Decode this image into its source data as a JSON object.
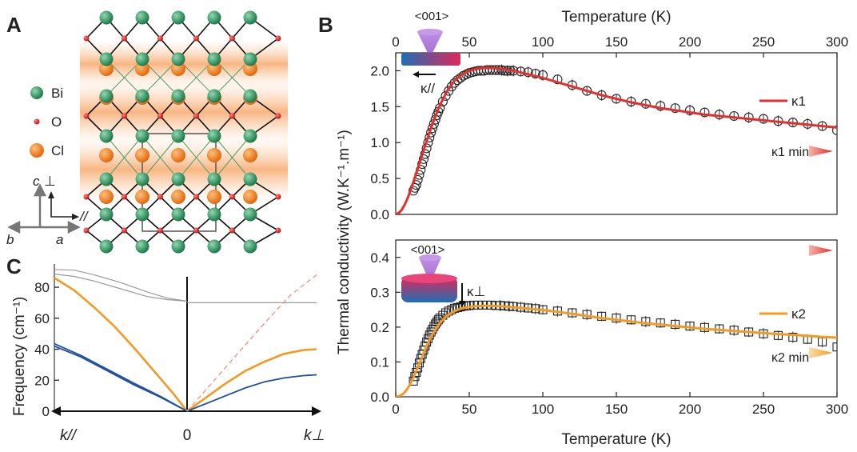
{
  "panels": {
    "a": "A",
    "b": "B",
    "c": "C"
  },
  "structure_legend": [
    {
      "label": "Bi",
      "color": "#2e8b57"
    },
    {
      "label": "O",
      "color": "#d42020"
    },
    {
      "label": "Cl",
      "color": "#e8782a"
    }
  ],
  "axes_labels": {
    "c": "c",
    "perp": "⊥",
    "b": "b",
    "a": "a",
    "par": "//"
  },
  "colors": {
    "kappa1": "#e03030",
    "kappa2": "#f39a22",
    "branch_blue": "#1e4f9c",
    "branch_orange": "#f39a22",
    "branch_gray": "#9a9a9a",
    "dashed": "#f08a70"
  },
  "chart_data": [
    {
      "id": "B-top",
      "type": "scatter",
      "xlabel": "Temperature (K)",
      "ylabel": "Thermal conductivity (W.K⁻¹.m⁻¹)",
      "xlim": [
        0,
        300
      ],
      "ylim": [
        0,
        2.25
      ],
      "x_ticks": [
        0,
        50,
        100,
        150,
        200,
        250,
        300
      ],
      "y_ticks": [
        "0.0",
        "0.5",
        "1.0",
        "1.5",
        "2.0"
      ],
      "inset_label": "<001>",
      "inset_kappa": "κ//",
      "legend": "κ1",
      "min_label": "κ1 min",
      "series": [
        {
          "name": "κ1",
          "kind": "line",
          "x": [
            0,
            2,
            4,
            6,
            8,
            10,
            12,
            15,
            18,
            21,
            25,
            30,
            35,
            40,
            45,
            50,
            55,
            60,
            65,
            70,
            75,
            80,
            90,
            100,
            110,
            120,
            130,
            140,
            150,
            160,
            170,
            180,
            190,
            200,
            210,
            220,
            230,
            240,
            250,
            260,
            270,
            280,
            290,
            300
          ],
          "y": [
            0,
            0.02,
            0.06,
            0.13,
            0.22,
            0.33,
            0.45,
            0.64,
            0.83,
            1.02,
            1.26,
            1.52,
            1.72,
            1.86,
            1.95,
            2.0,
            2.03,
            2.04,
            2.04,
            2.03,
            2.02,
            2.0,
            1.95,
            1.9,
            1.84,
            1.78,
            1.72,
            1.66,
            1.61,
            1.56,
            1.52,
            1.48,
            1.45,
            1.42,
            1.39,
            1.37,
            1.35,
            1.33,
            1.31,
            1.29,
            1.27,
            1.25,
            1.23,
            1.21
          ]
        },
        {
          "name": "",
          "kind": "markers",
          "x": [
            12,
            13,
            14,
            15,
            16,
            17,
            18,
            19,
            20,
            21,
            22,
            23,
            24,
            25,
            26,
            27,
            28,
            29,
            30,
            32,
            34,
            36,
            38,
            40,
            42,
            44,
            46,
            48,
            50,
            52,
            54,
            56,
            58,
            60,
            62,
            64,
            66,
            68,
            70,
            72,
            74,
            76,
            78,
            80,
            85,
            90,
            95,
            100,
            110,
            120,
            130,
            140,
            150,
            160,
            170,
            180,
            190,
            200,
            210,
            220,
            230,
            240,
            250,
            260,
            270,
            280,
            290,
            300
          ],
          "y": [
            0.33,
            0.37,
            0.41,
            0.48,
            0.55,
            0.62,
            0.7,
            0.77,
            0.84,
            0.92,
            1.0,
            1.07,
            1.14,
            1.2,
            1.26,
            1.32,
            1.38,
            1.43,
            1.48,
            1.57,
            1.65,
            1.72,
            1.78,
            1.83,
            1.87,
            1.9,
            1.93,
            1.95,
            1.97,
            1.98,
            1.99,
            2.0,
            2.0,
            2.0,
            2.01,
            2.01,
            2.01,
            2.01,
            2.01,
            2.01,
            2.0,
            2.0,
            2.0,
            2.0,
            1.99,
            1.98,
            1.96,
            1.94,
            1.88,
            1.8,
            1.72,
            1.66,
            1.61,
            1.57,
            1.54,
            1.51,
            1.48,
            1.45,
            1.42,
            1.39,
            1.37,
            1.35,
            1.33,
            1.3,
            1.28,
            1.26,
            1.23,
            1.17
          ]
        }
      ]
    },
    {
      "id": "B-bottom",
      "type": "scatter",
      "xlabel": "Temperature (K)",
      "xlim": [
        0,
        300
      ],
      "ylim": [
        0,
        0.45
      ],
      "x_ticks": [
        0,
        50,
        100,
        150,
        200,
        250,
        300
      ],
      "y_ticks": [
        "0.0",
        "0.1",
        "0.2",
        "0.3",
        "0.4"
      ],
      "inset_label": "<001>",
      "inset_kappa": "κ⊥",
      "legend": "κ2",
      "min_label": "κ2 min",
      "series": [
        {
          "name": "κ2",
          "kind": "line",
          "x": [
            0,
            3,
            6,
            9,
            12,
            15,
            18,
            21,
            25,
            30,
            35,
            40,
            45,
            50,
            55,
            60,
            65,
            70,
            75,
            80,
            90,
            100,
            110,
            120,
            130,
            140,
            150,
            160,
            170,
            180,
            190,
            200,
            210,
            220,
            230,
            240,
            250,
            260,
            270,
            280,
            290,
            300
          ],
          "y": [
            0,
            0.003,
            0.012,
            0.03,
            0.055,
            0.085,
            0.115,
            0.145,
            0.18,
            0.212,
            0.233,
            0.246,
            0.254,
            0.258,
            0.26,
            0.261,
            0.261,
            0.26,
            0.259,
            0.257,
            0.253,
            0.249,
            0.244,
            0.238,
            0.232,
            0.226,
            0.221,
            0.216,
            0.211,
            0.207,
            0.203,
            0.199,
            0.195,
            0.192,
            0.189,
            0.186,
            0.183,
            0.18,
            0.178,
            0.175,
            0.172,
            0.17
          ]
        },
        {
          "name": "",
          "kind": "markers",
          "x": [
            12,
            13,
            14,
            15,
            16,
            17,
            18,
            19,
            20,
            21,
            22,
            23,
            24,
            25,
            26,
            27,
            28,
            29,
            30,
            32,
            34,
            36,
            38,
            40,
            42,
            44,
            46,
            48,
            50,
            53,
            56,
            59,
            62,
            65,
            68,
            71,
            74,
            77,
            80,
            85,
            90,
            95,
            100,
            110,
            120,
            130,
            140,
            150,
            160,
            170,
            180,
            190,
            200,
            210,
            220,
            230,
            240,
            250,
            260,
            270,
            280,
            290,
            300
          ],
          "y": [
            0.045,
            0.058,
            0.07,
            0.083,
            0.097,
            0.11,
            0.122,
            0.134,
            0.146,
            0.157,
            0.167,
            0.177,
            0.186,
            0.194,
            0.202,
            0.209,
            0.215,
            0.221,
            0.226,
            0.234,
            0.241,
            0.246,
            0.25,
            0.254,
            0.256,
            0.258,
            0.26,
            0.261,
            0.262,
            0.263,
            0.263,
            0.263,
            0.263,
            0.263,
            0.262,
            0.262,
            0.261,
            0.26,
            0.259,
            0.257,
            0.255,
            0.253,
            0.25,
            0.246,
            0.241,
            0.236,
            0.231,
            0.226,
            0.221,
            0.216,
            0.212,
            0.208,
            0.203,
            0.199,
            0.195,
            0.191,
            0.186,
            0.181,
            0.176,
            0.171,
            0.165,
            0.158,
            0.143
          ]
        }
      ]
    },
    {
      "id": "C",
      "type": "line",
      "ylabel": "Frequency (cm⁻¹)",
      "ylim": [
        0,
        95
      ],
      "y_ticks": [
        "0",
        "20",
        "40",
        "60",
        "80"
      ],
      "x_labels": {
        "left": "k//",
        "mid": "0",
        "right": "k⊥"
      },
      "series": [
        {
          "name": "",
          "color_key": "branch_gray",
          "side": "left",
          "x": [
            0,
            0.15,
            0.3,
            0.5,
            0.7,
            0.85,
            1.0
          ],
          "y": [
            71,
            73,
            77,
            83,
            88,
            91,
            91.5
          ]
        },
        {
          "name": "",
          "color_key": "branch_gray",
          "side": "left",
          "x": [
            0,
            0.15,
            0.3,
            0.5,
            0.7,
            0.85,
            1.0
          ],
          "y": [
            71,
            72,
            74,
            79,
            84,
            87,
            88.5
          ]
        },
        {
          "name": "",
          "color_key": "branch_orange",
          "side": "left",
          "x": [
            0,
            0.1,
            0.25,
            0.4,
            0.55,
            0.7,
            0.85,
            1.0
          ],
          "y": [
            0,
            11,
            26,
            41,
            55,
            67,
            78,
            86
          ]
        },
        {
          "name": "",
          "color_key": "branch_blue",
          "side": "left",
          "x": [
            0,
            0.2,
            0.4,
            0.6,
            0.8,
            1.0
          ],
          "y": [
            0,
            9,
            17,
            26,
            35,
            42
          ]
        },
        {
          "name": "",
          "color_key": "branch_blue",
          "side": "left",
          "x": [
            0,
            0.2,
            0.4,
            0.6,
            0.8,
            1.0
          ],
          "y": [
            0,
            9.5,
            18,
            27,
            36,
            43.5
          ]
        },
        {
          "name": "",
          "color_key": "branch_gray",
          "side": "right",
          "x": [
            0,
            0.25,
            0.5,
            0.75,
            1.0
          ],
          "y": [
            70,
            70,
            70,
            70,
            70
          ]
        },
        {
          "name": "",
          "color_key": "branch_orange",
          "side": "right",
          "x": [
            0,
            0.15,
            0.3,
            0.45,
            0.6,
            0.75,
            0.9,
            1.0
          ],
          "y": [
            0,
            9,
            18,
            26,
            32,
            37,
            39.5,
            40
          ]
        },
        {
          "name": "",
          "color_key": "branch_blue",
          "side": "right",
          "x": [
            0,
            0.15,
            0.3,
            0.45,
            0.6,
            0.75,
            0.9,
            1.0
          ],
          "y": [
            0,
            5,
            10,
            15,
            19,
            21.5,
            23,
            23.5
          ]
        },
        {
          "name": "",
          "color_key": "dashed",
          "side": "right",
          "dashed": true,
          "x": [
            0,
            0.2,
            0.4,
            0.6,
            0.8,
            1.0
          ],
          "y": [
            0,
            19,
            38,
            57,
            75,
            88
          ]
        }
      ]
    }
  ]
}
